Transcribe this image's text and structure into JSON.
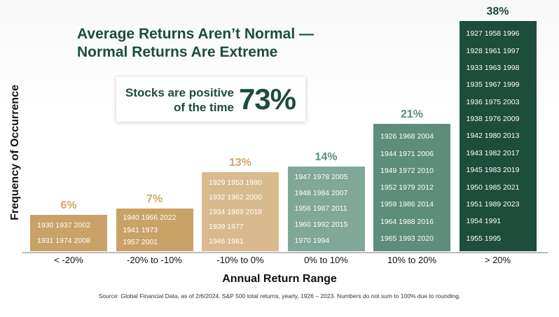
{
  "title_line1": "Average Returns Aren’t Normal —",
  "title_line2": "Normal Returns Are Extreme",
  "callout": {
    "line1": "Stocks are positive",
    "line2": "of the time",
    "value": "73%"
  },
  "ylabel": "Frequency of Occurrence",
  "xlabel": "Annual Return Range",
  "source": "Source: Global Financial Data, as of 2/6/2024. S&P 500 total returns, yearly, 1926 – 2023. Numbers do not sum to 100% due to rounding.",
  "colors": {
    "bar1": "#c9a268",
    "bar2": "#c9a268",
    "bar3": "#d8ba8e",
    "bar4": "#7fa898",
    "bar5": "#5c8e7b",
    "bar6": "#1d4d3b",
    "pct_tan": "#d0a86a",
    "pct_green": "#5c8e7b",
    "pct_dark": "#1d4d3b"
  },
  "chart_data": {
    "type": "bar",
    "categories": [
      "< -20%",
      "-20% to -10%",
      "-10% to 0%",
      "0% to 10%",
      "10% to 20%",
      "> 20%"
    ],
    "values": [
      6,
      7,
      13,
      14,
      21,
      38
    ],
    "value_labels": [
      "6%",
      "7%",
      "13%",
      "14%",
      "21%",
      "38%"
    ],
    "ylim": [
      0,
      38
    ],
    "year_lists": [
      [
        "1930 1937 2002",
        "1931 1974 2008"
      ],
      [
        "1940 1966 2022",
        "1941 1973",
        "1957 2001"
      ],
      [
        "1929 1953 1990",
        "1932 1962 2000",
        "1934 1969 2018",
        "1939 1977",
        "1946 1981"
      ],
      [
        "1947 1978 2005",
        "1948 1984 2007",
        "1956 1987 2011",
        "1960 1992 2015",
        "1970 1994"
      ],
      [
        "1926 1968 2004",
        "1944 1971 2006",
        "1949 1972 2010",
        "1952 1979 2012",
        "1959 1986 2014",
        "1964 1988 2016",
        "1965 1993 2020"
      ],
      [
        "1927 1958 1996",
        "1928 1961 1997",
        "1933 1963 1998",
        "1935 1967 1999",
        "1936 1975 2003",
        "1938 1976 2009",
        "1942 1980 2013",
        "1943 1982 2017",
        "1945 1983 2019",
        "1950 1985 2021",
        "1951 1989 2023",
        "1954 1991",
        "1955 1995"
      ]
    ]
  }
}
